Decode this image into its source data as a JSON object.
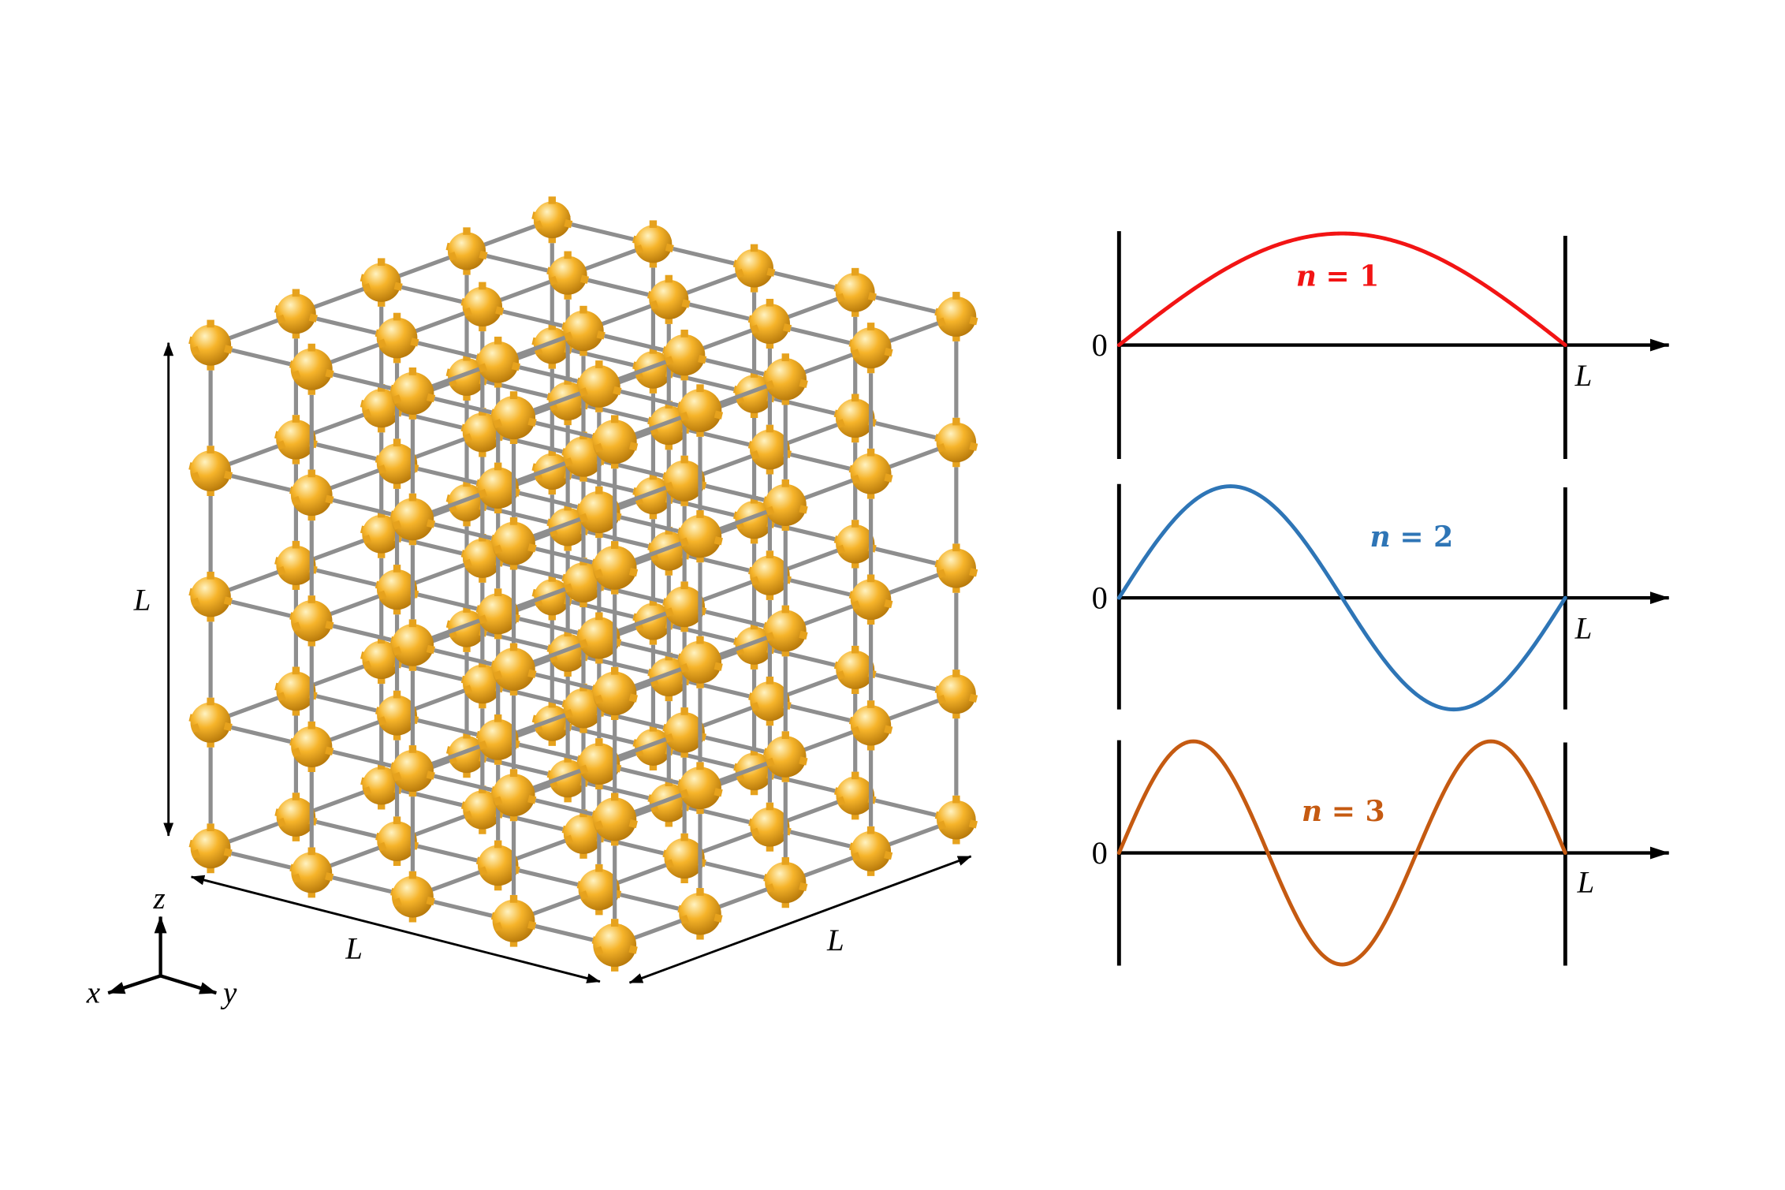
{
  "lattice": {
    "atoms_per_edge": 5,
    "dimension_labels": {
      "height": "L",
      "length": "L",
      "width": "L"
    },
    "axes": {
      "z": "z",
      "x": "x",
      "y": "y"
    },
    "colors": {
      "atom_highlight": "#fff3c2",
      "atom": "#f6b42a",
      "atom_shadow": "#b57709",
      "bond": "#8e8e8e",
      "bond_stub": "#e6a21d"
    }
  },
  "wave_plots": [
    {
      "label": {
        "symbol": "n",
        "value": "= 1"
      },
      "mode": 1,
      "color": "#f21414",
      "origin_label": "0",
      "end_label": "L"
    },
    {
      "label": {
        "symbol": "n",
        "value": "= 2"
      },
      "mode": 2,
      "color": "#2e75b6",
      "origin_label": "0",
      "end_label": "L"
    },
    {
      "label": {
        "symbol": "n",
        "value": "= 3"
      },
      "mode": 3,
      "color": "#c55a11",
      "origin_label": "0",
      "end_label": "L"
    }
  ],
  "colors": {
    "ink": "#000000",
    "background": "#ffffff"
  }
}
